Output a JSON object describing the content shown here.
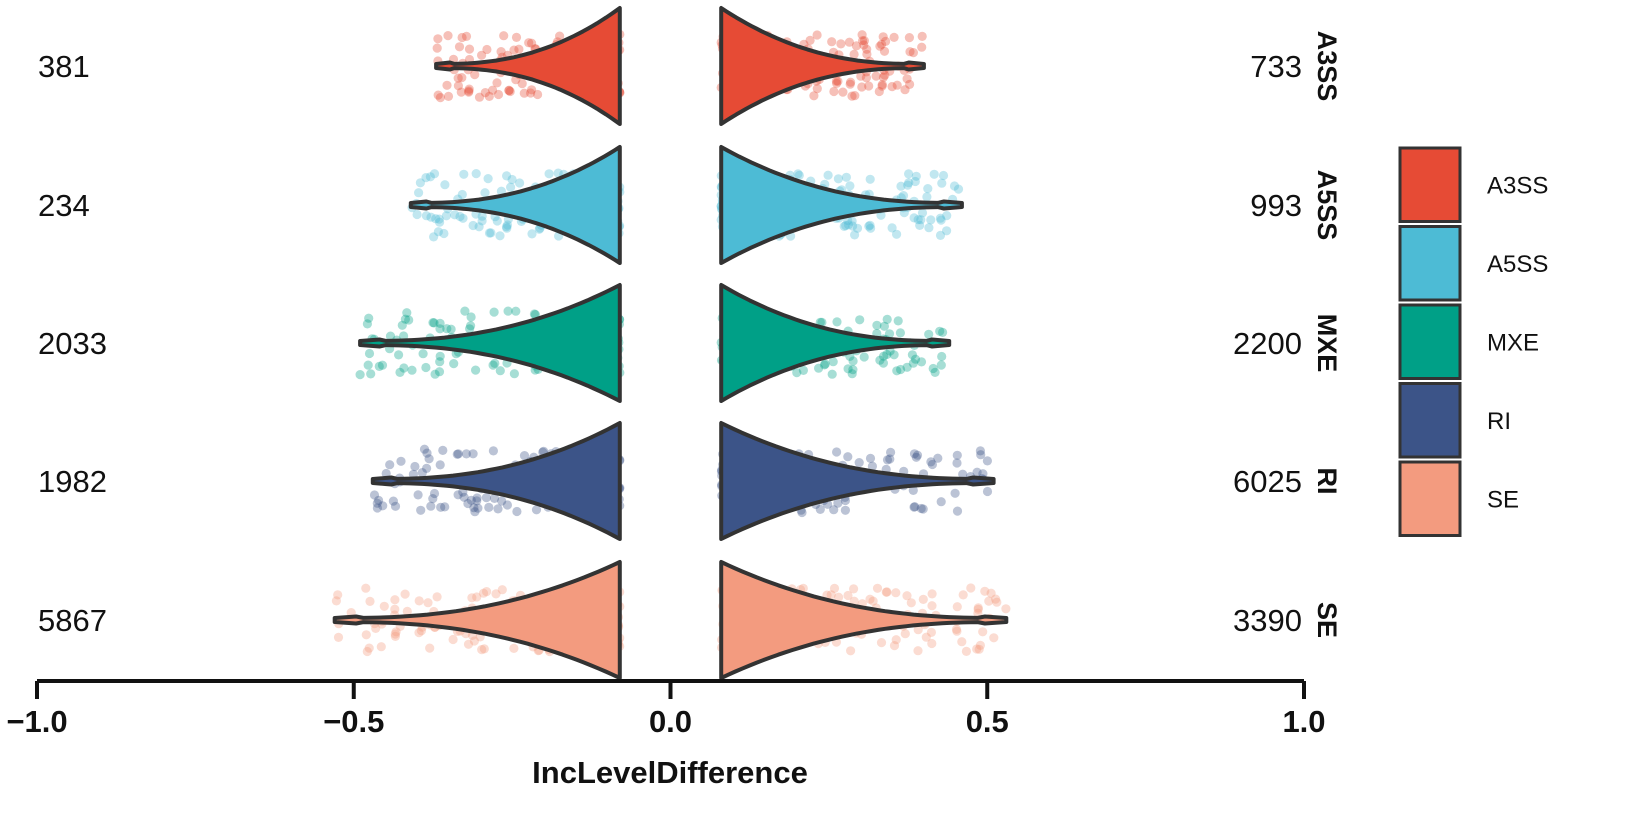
{
  "chart_data": {
    "type": "violin",
    "xlabel": "IncLevelDifference",
    "xlim": [
      -1.0,
      1.0
    ],
    "x_ticks": [
      -1.0,
      -0.5,
      0.0,
      0.5,
      1.0
    ],
    "x_tick_labels": [
      "−1.0",
      "−0.5",
      "0.0",
      "0.5",
      "1.0"
    ],
    "legend_position": "right",
    "grid": false,
    "series": [
      {
        "name": "A3SS",
        "color": "#E64B35",
        "left_count": "381",
        "right_count": "733",
        "left_min": -0.37,
        "right_max": 0.4,
        "peak_left": -0.08,
        "peak_right": 0.08
      },
      {
        "name": "A5SS",
        "color": "#4DBBD5",
        "left_count": "234",
        "right_count": "993",
        "left_min": -0.41,
        "right_max": 0.46,
        "peak_left": -0.08,
        "peak_right": 0.08
      },
      {
        "name": "MXE",
        "color": "#00A087",
        "left_count": "2033",
        "right_count": "2200",
        "left_min": -0.49,
        "right_max": 0.44,
        "peak_left": -0.08,
        "peak_right": 0.08
      },
      {
        "name": "RI",
        "color": "#3C5488",
        "left_count": "1982",
        "right_count": "6025",
        "left_min": -0.47,
        "right_max": 0.51,
        "peak_left": -0.08,
        "peak_right": 0.08
      },
      {
        "name": "SE",
        "color": "#F39B7F",
        "left_count": "5867",
        "right_count": "3390",
        "left_min": -0.53,
        "right_max": 0.53,
        "peak_left": -0.08,
        "peak_right": 0.08
      }
    ]
  }
}
